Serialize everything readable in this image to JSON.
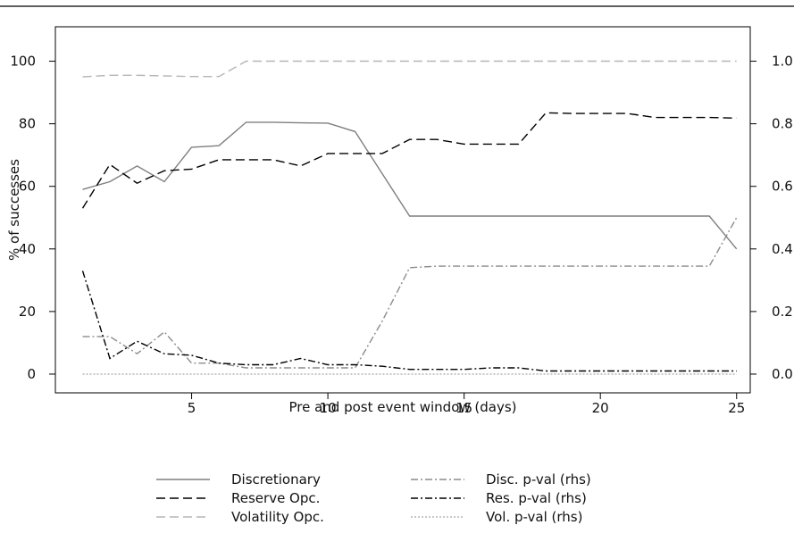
{
  "chart_data": {
    "type": "line",
    "title": "",
    "xlabel": "Pre and post event window (days)",
    "ylabel": "% of successes",
    "y2label": "",
    "xlim": [
      0,
      25.5
    ],
    "ylim": [
      -6,
      111
    ],
    "y2lim": [
      -0.06,
      1.11
    ],
    "xticks": [
      5,
      10,
      15,
      20,
      25
    ],
    "yticks": [
      0,
      20,
      40,
      60,
      80,
      100
    ],
    "y2ticks": [
      "0.0",
      "0.2",
      "0.4",
      "0.6",
      "0.8",
      "1.0"
    ],
    "grid": false,
    "legend_position": "bottom",
    "x": [
      1,
      2,
      3,
      4,
      5,
      6,
      7,
      8,
      9,
      10,
      11,
      12,
      13,
      14,
      15,
      16,
      17,
      18,
      19,
      20,
      21,
      22,
      23,
      24,
      25
    ],
    "series": [
      {
        "name": "Discretionary",
        "axis": "left",
        "color": "#7f7f7f",
        "dash": "",
        "values": [
          59,
          61.5,
          66.5,
          61.5,
          72.5,
          73,
          80.5,
          80.5,
          80.3,
          80.2,
          77.5,
          64,
          50.5,
          50.5,
          50.5,
          50.5,
          50.5,
          50.5,
          50.5,
          50.5,
          50.5,
          50.5,
          50.5,
          50.5,
          40
        ]
      },
      {
        "name": "Reserve Opc.",
        "axis": "left",
        "color": "#000000",
        "dash": "10,5",
        "values": [
          53,
          67,
          61,
          65,
          65.5,
          68.5,
          68.5,
          68.5,
          66.5,
          70.5,
          70.5,
          70.5,
          75,
          75,
          73.5,
          73.5,
          73.5,
          83.5,
          83.3,
          83.3,
          83.3,
          82,
          82,
          82,
          81.8
        ]
      },
      {
        "name": "Volatility Opc.",
        "axis": "left",
        "color": "#b5b5b5",
        "dash": "10,5",
        "values": [
          95,
          95.5,
          95.5,
          95.3,
          95.1,
          95.1,
          100,
          100,
          100,
          100,
          100,
          100,
          100,
          100,
          100,
          100,
          100,
          100,
          100,
          100,
          100,
          100,
          100,
          100,
          100
        ]
      },
      {
        "name": "Disc. p-val (rhs)",
        "axis": "right",
        "color": "#8c8c8c",
        "dash": "8,3,2,3",
        "values": [
          0.12,
          0.12,
          0.065,
          0.135,
          0.035,
          0.035,
          0.02,
          0.02,
          0.02,
          0.02,
          0.02,
          0.17,
          0.34,
          0.345,
          0.345,
          0.345,
          0.345,
          0.345,
          0.345,
          0.345,
          0.345,
          0.345,
          0.345,
          0.345,
          0.5
        ]
      },
      {
        "name": "Res. p-val (rhs)",
        "axis": "right",
        "color": "#000000",
        "dash": "8,3,2,3",
        "values": [
          0.33,
          0.05,
          0.105,
          0.065,
          0.06,
          0.035,
          0.03,
          0.03,
          0.05,
          0.03,
          0.03,
          0.025,
          0.015,
          0.015,
          0.015,
          0.02,
          0.02,
          0.01,
          0.01,
          0.01,
          0.01,
          0.01,
          0.01,
          0.01,
          0.01
        ]
      },
      {
        "name": "Vol. p-val (rhs)",
        "axis": "right",
        "color": "#b5b5b5",
        "dash": "2,2",
        "values": [
          0,
          0,
          0,
          0,
          0,
          0,
          0,
          0,
          0,
          0,
          0,
          0,
          0,
          0,
          0,
          0,
          0,
          0,
          0,
          0,
          0,
          0,
          0,
          0,
          0
        ]
      }
    ]
  }
}
